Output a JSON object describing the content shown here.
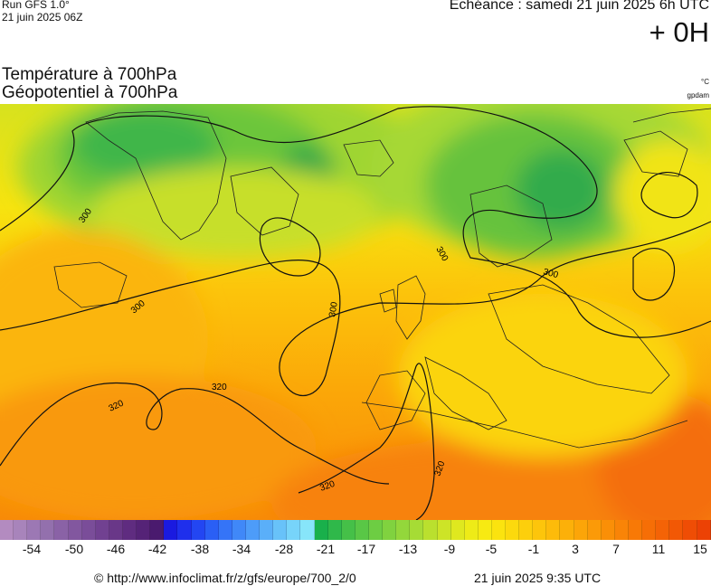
{
  "header": {
    "run_label": "Run GFS 1.0°",
    "run_date": "21 juin 2025 06Z",
    "echeance": "Echéance : samedi 21 juin 2025 6h UTC",
    "lead_time": "+ 0H"
  },
  "titles": {
    "line1": "Température à 700hPa",
    "line2": "Géopotentiel à 700hPa",
    "unit_temp": "°C",
    "unit_geo": "gpdam"
  },
  "contours": [
    {
      "label": "300"
    },
    {
      "label": "300"
    },
    {
      "label": "300"
    },
    {
      "label": "300"
    },
    {
      "label": "300"
    },
    {
      "label": "320"
    },
    {
      "label": "320"
    },
    {
      "label": "320"
    },
    {
      "label": "320"
    }
  ],
  "colorbar": {
    "colors": [
      "#b38bc0",
      "#a884bb",
      "#9c78b4",
      "#9370ad",
      "#8a62a6",
      "#82579f",
      "#7a4d99",
      "#714191",
      "#693788",
      "#5f2c80",
      "#552377",
      "#4a1a6e",
      "#1a1ae0",
      "#1f2fec",
      "#2346f2",
      "#2a5ff5",
      "#3574f7",
      "#4088f8",
      "#4d9cf9",
      "#5aaff9",
      "#68c2f9",
      "#77d4fa",
      "#87e5fa",
      "#19b04b",
      "#2fb84a",
      "#45c048",
      "#59c746",
      "#6dcd43",
      "#80d23f",
      "#93d73b",
      "#a6dc35",
      "#bae02e",
      "#cde427",
      "#dfe81f",
      "#eeeb17",
      "#f7ea12",
      "#fbe30f",
      "#fcd90d",
      "#fdcf0c",
      "#fdc50b",
      "#fdbb0a",
      "#fcb009",
      "#fca508",
      "#fb9a08",
      "#fa8f07",
      "#f98407",
      "#f87906",
      "#f66e06",
      "#f46306",
      "#f25805",
      "#ef4d05",
      "#ec4205"
    ],
    "tick_labels": [
      "-54",
      "-50",
      "-46",
      "-42",
      "-38",
      "-34",
      "-28",
      "-21",
      "-17",
      "-13",
      "-9",
      "-5",
      "-1",
      "3",
      "7",
      "11",
      "15"
    ]
  },
  "footer": {
    "credit": "© http://www.infoclimat.fr/z/gfs/europe/700_2/0",
    "timestamp": "21 juin 2025  9:35 UTC"
  }
}
